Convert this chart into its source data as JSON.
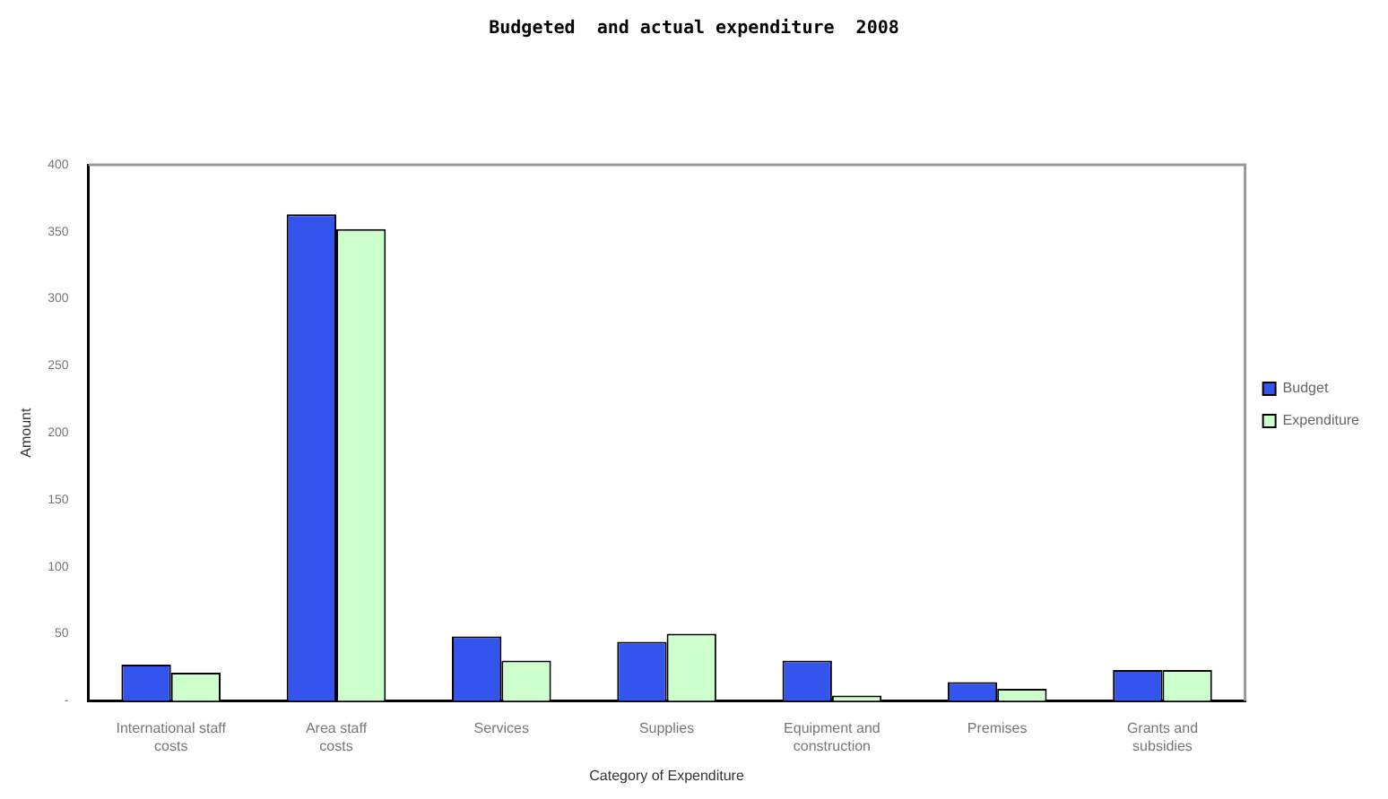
{
  "chart_data": {
    "type": "bar",
    "title": "Budgeted  and actual expenditure  2008",
    "xlabel": "Category of Expenditure",
    "ylabel": "Amount",
    "categories": [
      "International staff costs",
      "Area staff costs",
      "Services",
      "Supplies",
      "Equipment and construction",
      "Premises",
      "Grants and subsidies"
    ],
    "series": [
      {
        "name": "Budget",
        "color": "#3355ee",
        "values": [
          27,
          363,
          48,
          44,
          30,
          14,
          23
        ]
      },
      {
        "name": "Expenditure",
        "color": "#ccffcc",
        "values": [
          21,
          352,
          30,
          50,
          4,
          9,
          23
        ]
      }
    ],
    "ylim": [
      0,
      400
    ],
    "yticks": [
      {
        "value": 0,
        "label": "-"
      },
      50,
      100,
      150,
      200,
      250,
      300,
      350,
      400
    ],
    "grid": false,
    "legend": "right"
  }
}
